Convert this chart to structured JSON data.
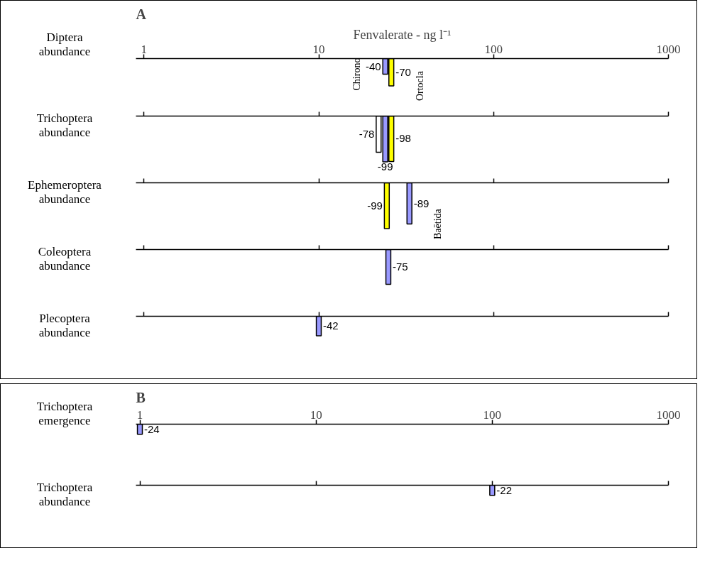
{
  "chart_data": [
    {
      "type": "bar",
      "title": "A",
      "xlabel": "Fenvalerate - ng l⁻¹",
      "ylabel": "Diptera abundance",
      "x": [
        24,
        26
      ],
      "values": [
        -40,
        -70
      ],
      "colors": [
        "#9999ff",
        "#ffff00"
      ],
      "data_labels": true,
      "annotations": [
        {
          "text": "Chirono",
          "x": 24,
          "y": -40
        },
        {
          "text": "Ortocla",
          "x": 26,
          "y": -70
        }
      ],
      "log": "x",
      "xlim": [
        0.9,
        1000
      ],
      "xticks": [
        1,
        10,
        100,
        1000
      ],
      "tick_labels": "x"
    },
    {
      "type": "bar",
      "ylabel": "Trichoptera abundance",
      "x": [
        22,
        24,
        26
      ],
      "values": [
        -78,
        -99,
        -98
      ],
      "colors": [
        "#ffffff",
        "#9999ff",
        "#ffff00"
      ],
      "data_labels": true,
      "log": "x",
      "xlim": [
        0.9,
        1000
      ],
      "xticks": [
        1,
        10,
        100,
        1000
      ],
      "tick_labels": false
    },
    {
      "type": "bar",
      "ylabel": "Ephemeroptera abundance",
      "x": [
        24.5,
        33
      ],
      "values": [
        -99,
        -89
      ],
      "colors": [
        "#ffff00",
        "#9999ff"
      ],
      "data_labels": true,
      "annotations": [
        {
          "text": "Baëtida",
          "x": 33,
          "y": -89
        }
      ],
      "log": "x",
      "xlim": [
        0.9,
        1000
      ],
      "xticks": [
        1,
        10,
        100,
        1000
      ],
      "tick_labels": false
    },
    {
      "type": "bar",
      "ylabel": "Coleoptera abundance",
      "x": [
        25
      ],
      "values": [
        -75
      ],
      "colors": [
        "#9999ff"
      ],
      "data_labels": true,
      "log": "x",
      "xlim": [
        0.9,
        1000
      ],
      "xticks": [
        1,
        10,
        100,
        1000
      ],
      "tick_labels": false
    },
    {
      "type": "bar",
      "ylabel": "Plecoptera abundance",
      "x": [
        10
      ],
      "values": [
        -42
      ],
      "colors": [
        "#9999ff"
      ],
      "data_labels": true,
      "log": "x",
      "xlim": [
        0.9,
        1000
      ],
      "xticks": [
        1,
        10,
        100,
        1000
      ],
      "tick_labels": false
    },
    {
      "type": "bar",
      "title": "B",
      "ylabel": "Trichoptera emergence",
      "x": [
        1
      ],
      "values": [
        -24
      ],
      "colors": [
        "#9999ff"
      ],
      "data_labels": true,
      "log": "x",
      "xlim": [
        0.95,
        1000
      ],
      "xticks": [
        1,
        10,
        100,
        1000
      ],
      "tick_labels": "x"
    },
    {
      "type": "bar",
      "ylabel": "Trichoptera abundance",
      "x": [
        100
      ],
      "values": [
        -22
      ],
      "colors": [
        "#9999ff"
      ],
      "data_labels": true,
      "log": "x",
      "xlim": [
        0.95,
        1000
      ],
      "xticks": [
        1,
        10,
        100,
        1000
      ],
      "tick_labels": false
    }
  ]
}
